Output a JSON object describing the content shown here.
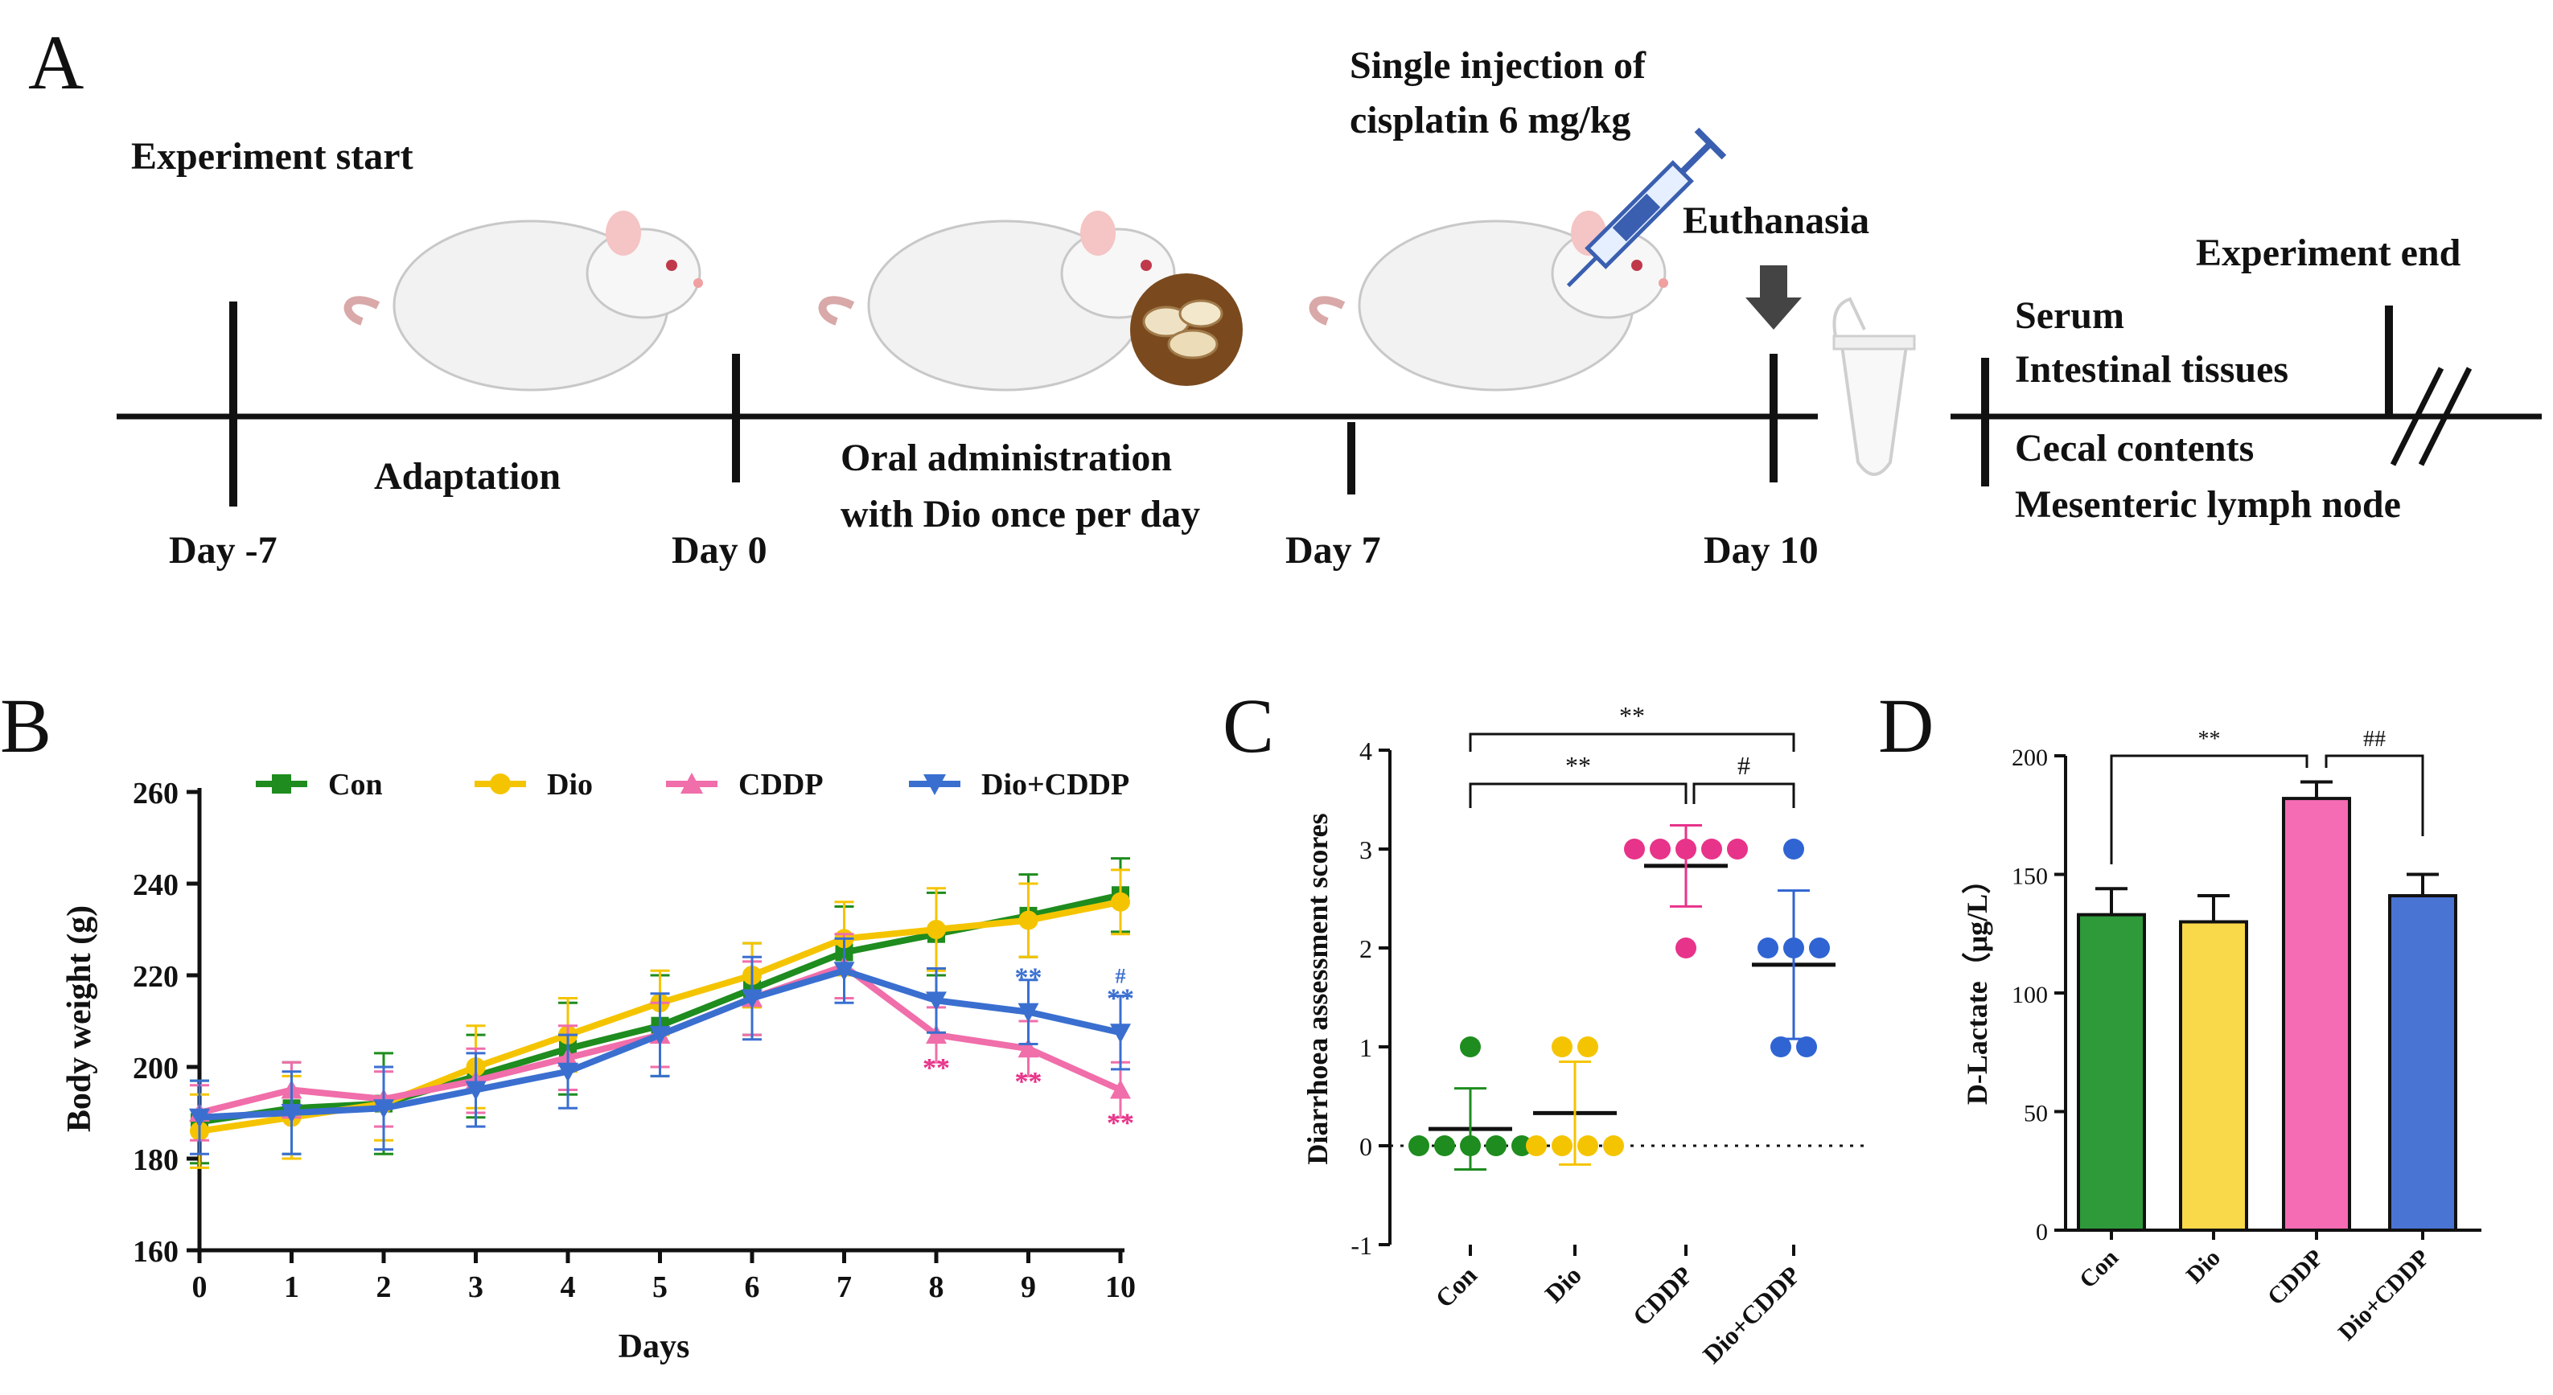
{
  "panels": {
    "a": "A",
    "b": "B",
    "c": "C",
    "d": "D"
  },
  "timeline": {
    "experiment_start": "Experiment start",
    "adaptation": "Adaptation",
    "oral_line1": "Oral administration",
    "oral_line2": "with Dio once per day",
    "injection_line1": "Single injection of",
    "injection_line2": "cisplatin 6 mg/kg",
    "euthanasia": "Euthanasia",
    "experiment_end": "Experiment end",
    "samples": [
      "Serum",
      "Intestinal tissues",
      "Cecal contents",
      "Mesenteric lymph node"
    ],
    "days": [
      "Day -7",
      "Day 0",
      "Day 7",
      "Day 10"
    ]
  },
  "chart_data": [
    {
      "panel": "B",
      "type": "line",
      "xlabel": "Days",
      "ylabel": "Body weight (g)",
      "x": [
        0,
        1,
        2,
        3,
        4,
        5,
        6,
        7,
        8,
        9,
        10
      ],
      "ylim": [
        160,
        260
      ],
      "yticks": [
        160,
        180,
        200,
        220,
        240,
        260
      ],
      "series": [
        {
          "name": "Con",
          "color": "#1e8c1e",
          "marker": "square",
          "values": [
            188,
            191,
            192,
            198,
            204,
            209,
            217,
            225,
            229,
            233,
            237.5
          ],
          "errors": [
            9,
            10,
            11,
            9,
            10,
            11,
            10,
            10,
            9,
            9,
            8
          ]
        },
        {
          "name": "Dio",
          "color": "#f5c400",
          "marker": "circle",
          "values": [
            186,
            189,
            192,
            200,
            207,
            214,
            220,
            228,
            230,
            232,
            236
          ],
          "errors": [
            8,
            9,
            8,
            9,
            8,
            7,
            7,
            8,
            9,
            8,
            7
          ]
        },
        {
          "name": "CDDP",
          "color": "#f06eaa",
          "marker": "triangle-up",
          "values": [
            190,
            195,
            193,
            197,
            202,
            207,
            215,
            222,
            207,
            204,
            195
          ],
          "errors": [
            6,
            6,
            6,
            7,
            7,
            7,
            8,
            7,
            6,
            6,
            6
          ]
        },
        {
          "name": "Dio+CDDP",
          "color": "#3a6fd0",
          "marker": "triangle-down",
          "values": [
            189,
            190,
            191,
            195,
            199,
            207,
            215,
            221,
            214.5,
            212,
            207.5
          ],
          "errors": [
            8,
            9,
            9,
            8,
            8,
            9,
            9,
            7,
            7,
            7,
            8
          ]
        }
      ],
      "annotations": [
        {
          "text": "**",
          "x": 8,
          "series": "CDDP",
          "color": "#e8338a"
        },
        {
          "text": "**",
          "x": 9,
          "series": "CDDP",
          "color": "#e8338a"
        },
        {
          "text": "**",
          "x": 10,
          "series": "CDDP",
          "color": "#e8338a"
        },
        {
          "text": "**",
          "x": 9,
          "series": "Dio+CDDP",
          "color": "#3a6fd0"
        },
        {
          "text": "**",
          "x": 10,
          "series": "Dio+CDDP",
          "color": "#3a6fd0"
        },
        {
          "text": "#",
          "x": 10,
          "series": "Dio+CDDP",
          "color": "#3a6fd0"
        }
      ]
    },
    {
      "panel": "C",
      "type": "scatter",
      "ylabel": "Diarrhoea assessment scores",
      "categories": [
        "Con",
        "Dio",
        "CDDP",
        "Dio+CDDP"
      ],
      "ylim": [
        -1,
        4
      ],
      "yticks": [
        -1,
        0,
        1,
        2,
        3,
        4
      ],
      "colors": [
        "#1e8c1e",
        "#f5c400",
        "#e8338a",
        "#2f64d2"
      ],
      "points": [
        [
          1,
          0,
          0,
          0,
          0,
          0
        ],
        [
          1,
          1,
          0,
          0,
          0,
          0
        ],
        [
          3,
          3,
          3,
          3,
          3,
          2
        ],
        [
          3,
          2,
          2,
          2,
          1,
          1
        ]
      ],
      "means": [
        0.17,
        0.33,
        2.83,
        1.83
      ],
      "sds": [
        0.41,
        0.52,
        0.41,
        0.75
      ],
      "significance": [
        {
          "from": 0,
          "to": 3,
          "text": "**"
        },
        {
          "from": 0,
          "to": 2,
          "text": "**"
        },
        {
          "from": 2,
          "to": 3,
          "text": "#"
        }
      ]
    },
    {
      "panel": "D",
      "type": "bar",
      "ylabel": "D-Lactate（μg/L）",
      "categories": [
        "Con",
        "Dio",
        "CDDP",
        "Dio+CDDP"
      ],
      "values": [
        133,
        130,
        182,
        141
      ],
      "errors": [
        11,
        11,
        7,
        9
      ],
      "colors": [
        "#2e9a3a",
        "#f9d84a",
        "#f56bb4",
        "#4a74d4"
      ],
      "ylim": [
        0,
        200
      ],
      "yticks": [
        0,
        50,
        100,
        150,
        200
      ],
      "significance": [
        {
          "from": 0,
          "to": 2,
          "text": "**"
        },
        {
          "from": 2,
          "to": 3,
          "text": "##"
        }
      ]
    }
  ]
}
